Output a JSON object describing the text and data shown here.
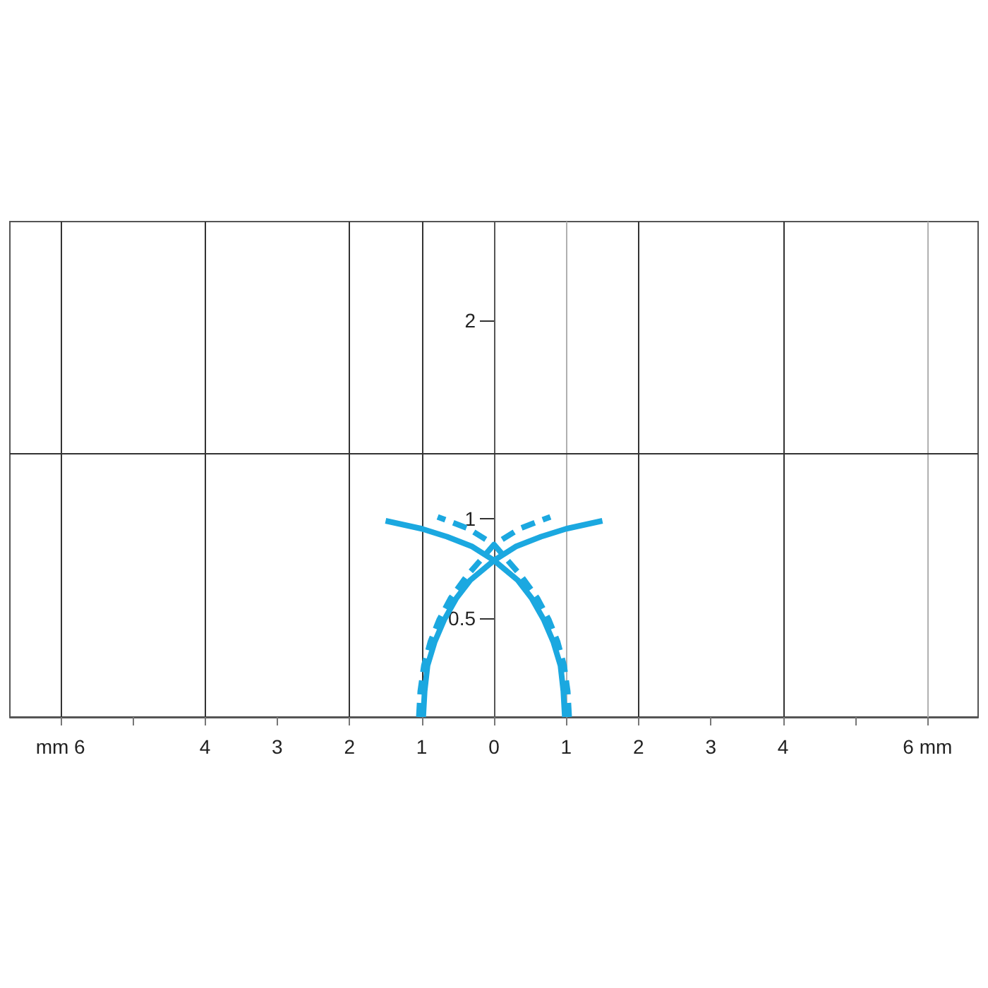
{
  "chart_data": {
    "type": "line",
    "xlim": [
      -6.7,
      6.7
    ],
    "ylim": [
      0,
      2.5
    ],
    "xticks": [
      {
        "value": -6,
        "label": "mm 6"
      },
      {
        "value": -5,
        "label": null
      },
      {
        "value": -4,
        "label": "4"
      },
      {
        "value": -3,
        "label": "3"
      },
      {
        "value": -2,
        "label": "2"
      },
      {
        "value": -1,
        "label": "1"
      },
      0,
      1,
      2,
      3,
      4,
      {
        "value": 5,
        "label": null
      },
      {
        "value": 6,
        "label": "6 mm"
      }
    ],
    "yticks": [
      0.5,
      1,
      2
    ],
    "grid": false,
    "marker": "none",
    "ref_lines": [
      {
        "axis": "x",
        "value": -6,
        "color": "#333333"
      },
      {
        "axis": "x",
        "value": -4,
        "color": "#333333"
      },
      {
        "axis": "x",
        "value": -2,
        "color": "#333333"
      },
      {
        "axis": "x",
        "value": -1,
        "color": "#333333"
      },
      {
        "axis": "x",
        "value": 1,
        "color": "#b0b0b0"
      },
      {
        "axis": "x",
        "value": 2,
        "color": "#333333"
      },
      {
        "axis": "x",
        "value": 4,
        "color": "#333333"
      },
      {
        "axis": "x",
        "value": 6,
        "color": "#b0b0b0"
      },
      {
        "axis": "y",
        "value": 1.33,
        "color": "#333333"
      }
    ],
    "series": [
      {
        "color": "#1ba8e0",
        "line_style": "solid",
        "x": [
          -0.98,
          -0.96,
          -0.92,
          -0.82,
          -0.69,
          -0.52,
          -0.33,
          0,
          0.3,
          0.65,
          1.0,
          1.5
        ],
        "values": [
          0,
          0.13,
          0.26,
          0.38,
          0.49,
          0.6,
          0.69,
          0.79,
          0.86,
          0.91,
          0.95,
          0.99
        ]
      },
      {
        "color": "#1ba8e0",
        "line_style": "solid",
        "x": [
          0.98,
          0.96,
          0.92,
          0.82,
          0.69,
          0.52,
          0.33,
          0,
          -0.3,
          -0.65,
          -1.0,
          -1.5
        ],
        "values": [
          0,
          0.13,
          0.26,
          0.38,
          0.49,
          0.6,
          0.69,
          0.79,
          0.86,
          0.91,
          0.95,
          0.99
        ]
      },
      {
        "color": "#1ba8e0",
        "line_style": "dashed",
        "x": [
          -1.04,
          -1.02,
          -0.97,
          -0.88,
          -0.76,
          -0.6,
          -0.38,
          0,
          0.35,
          0.78
        ],
        "values": [
          0,
          0.13,
          0.26,
          0.38,
          0.49,
          0.6,
          0.71,
          0.87,
          0.95,
          1.01
        ]
      },
      {
        "color": "#1ba8e0",
        "line_style": "dashed",
        "x": [
          1.04,
          1.02,
          0.97,
          0.88,
          0.76,
          0.6,
          0.38,
          0,
          -0.35,
          -0.78
        ],
        "values": [
          0,
          0.13,
          0.26,
          0.38,
          0.49,
          0.6,
          0.71,
          0.87,
          0.95,
          1.01
        ]
      }
    ]
  }
}
